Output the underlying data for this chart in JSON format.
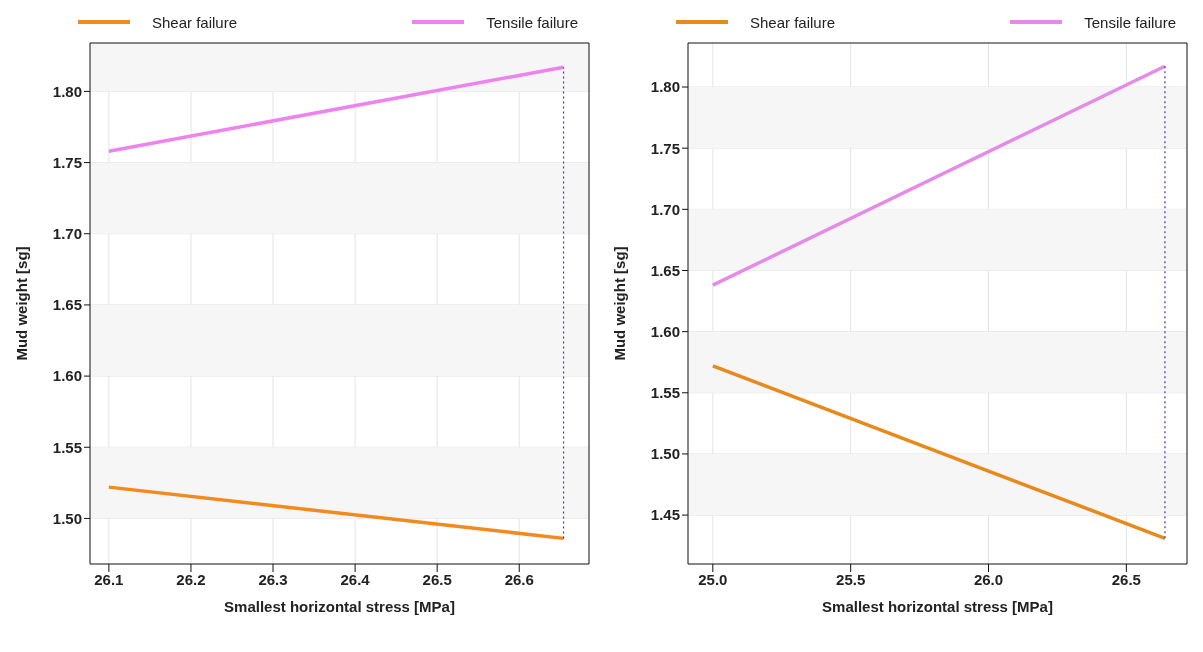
{
  "chart_data": [
    {
      "type": "line",
      "xlabel": "Smallest horizontal stress [MPa]",
      "ylabel": "Mud weight [sg]",
      "legend": "top",
      "grid": true,
      "line_style": "solid",
      "marker": "none",
      "xlim": [
        26.077,
        26.685
      ],
      "xticks": [
        26.1,
        26.2,
        26.3,
        26.4,
        26.5,
        26.6
      ],
      "ylim": [
        1.468,
        1.834
      ],
      "yticks": [
        {
          "value": 1.5,
          "label": "1.50"
        },
        1.55,
        {
          "value": 1.6,
          "label": "1.60"
        },
        1.65,
        {
          "value": 1.7,
          "label": "1.70"
        },
        1.75,
        {
          "value": 1.8,
          "label": "1.80"
        }
      ],
      "bands": [
        {
          "axis": "y",
          "from": 1.5,
          "to": 1.55,
          "color": "#f6f6f6"
        },
        {
          "axis": "y",
          "from": 1.6,
          "to": 1.65,
          "color": "#f6f6f6"
        },
        {
          "axis": "y",
          "from": 1.7,
          "to": 1.75,
          "color": "#f6f6f6"
        },
        {
          "axis": "y",
          "from": 1.8,
          "to": 1.834,
          "color": "#f6f6f6"
        }
      ],
      "series": [
        {
          "name": "Shear failure",
          "color": "#f28a1e",
          "x": [
            26.1,
            26.654
          ],
          "values": [
            1.522,
            1.486
          ]
        },
        {
          "name": "Tensile failure",
          "color": "#ee82ee",
          "x": [
            26.1,
            26.654
          ],
          "values": [
            1.758,
            1.817
          ]
        },
        {
          "color": "#3a3ab0",
          "line_style": "dotted",
          "x": [
            26.654,
            26.654
          ],
          "values": [
            1.486,
            1.817
          ]
        }
      ]
    },
    {
      "type": "line",
      "xlabel": "Smallest horizontal stress [MPa]",
      "ylabel": "Mud weight [sg]",
      "legend": "top",
      "grid": true,
      "line_style": "solid",
      "marker": "none",
      "xlim": [
        24.91,
        26.72
      ],
      "xticks": [
        {
          "value": 25,
          "label": "25.0"
        },
        25.5,
        {
          "value": 26,
          "label": "26.0"
        },
        26.5
      ],
      "ylim": [
        1.41,
        1.836
      ],
      "yticks": [
        1.45,
        {
          "value": 1.5,
          "label": "1.50"
        },
        1.55,
        {
          "value": 1.6,
          "label": "1.60"
        },
        1.65,
        {
          "value": 1.7,
          "label": "1.70"
        },
        1.75,
        {
          "value": 1.8,
          "label": "1.80"
        }
      ],
      "bands": [
        {
          "axis": "y",
          "from": 1.45,
          "to": 1.5,
          "color": "#f6f6f6"
        },
        {
          "axis": "y",
          "from": 1.55,
          "to": 1.6,
          "color": "#f6f6f6"
        },
        {
          "axis": "y",
          "from": 1.65,
          "to": 1.7,
          "color": "#f6f6f6"
        },
        {
          "axis": "y",
          "from": 1.75,
          "to": 1.8,
          "color": "#f6f6f6"
        }
      ],
      "series": [
        {
          "name": "Shear failure",
          "color": "#e8891c",
          "x": [
            25.0,
            26.64
          ],
          "values": [
            1.572,
            1.431
          ]
        },
        {
          "name": "Tensile failure",
          "color": "#e58ae8",
          "x": [
            25.0,
            26.64
          ],
          "values": [
            1.638,
            1.817
          ]
        },
        {
          "color": "#3a3ab0",
          "line_style": "dotted",
          "x": [
            26.64,
            26.64
          ],
          "values": [
            1.431,
            1.817
          ]
        }
      ]
    }
  ]
}
